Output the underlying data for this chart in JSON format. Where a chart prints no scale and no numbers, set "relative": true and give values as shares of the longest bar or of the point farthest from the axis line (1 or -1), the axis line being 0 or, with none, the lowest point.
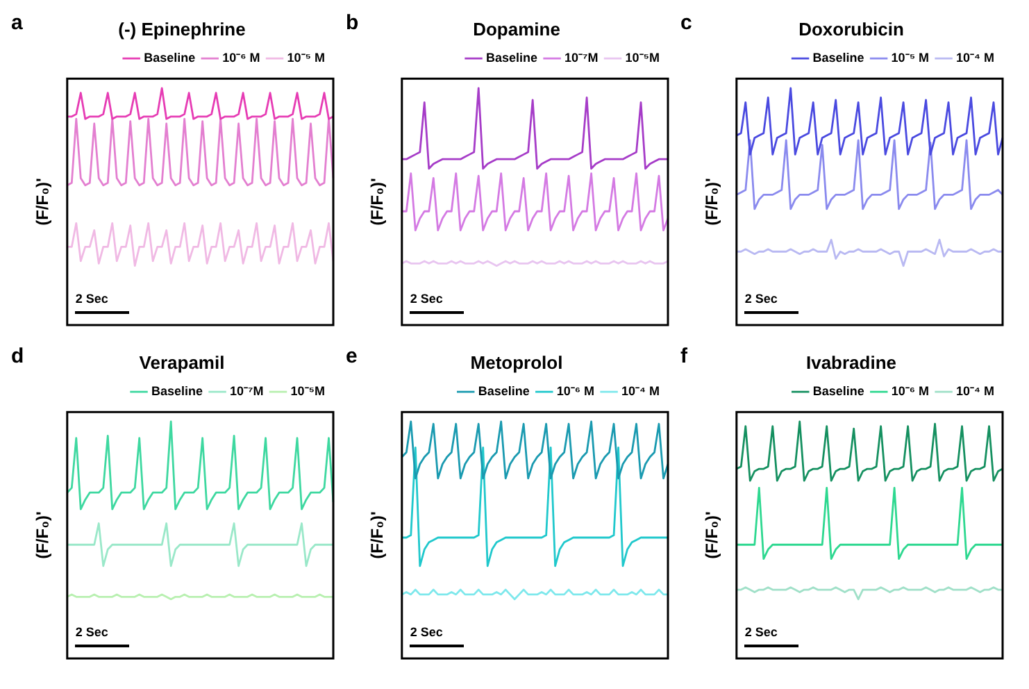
{
  "chart_data": [
    {
      "type": "line",
      "title": "(-) Epinephrine",
      "ylabel": "(F/F₀)'",
      "relative": true,
      "legend": "top right",
      "grid": false,
      "marker": "none",
      "line_style": "solid",
      "annotations": [
        "a",
        "2 Sec"
      ],
      "categories": [
        null,
        null,
        null,
        null,
        null,
        null,
        null,
        null,
        null,
        null,
        null,
        null,
        null,
        null,
        null,
        null,
        null,
        null,
        null,
        null,
        null,
        null,
        null,
        null,
        null,
        null,
        null,
        null,
        null,
        null,
        null,
        null,
        null,
        null,
        null,
        null,
        null,
        null,
        null,
        null,
        null,
        null,
        null,
        null,
        null,
        null,
        null,
        null,
        null,
        null,
        null,
        null,
        null,
        null,
        null,
        null,
        null,
        null,
        null,
        null
      ],
      "series": [
        {
          "name": "Baseline",
          "color": "#e63cb4",
          "values": [
            0.88,
            0.88,
            0.89,
            0.98,
            0.87,
            0.88,
            0.88,
            0.88,
            0.89,
            0.98,
            0.87,
            0.88,
            0.88,
            0.88,
            0.89,
            0.98,
            0.87,
            0.88,
            0.88,
            0.88,
            0.89,
            1,
            0.87,
            0.88,
            0.88,
            0.88,
            0.89,
            0.98,
            0.87,
            0.88,
            0.88,
            0.88,
            0.89,
            0.98,
            0.87,
            0.88,
            0.88,
            0.88,
            0.89,
            0.98,
            0.87,
            0.88,
            0.88,
            0.88,
            0.89,
            0.98,
            0.87,
            0.88,
            0.88,
            0.88,
            0.89,
            0.98,
            0.87,
            0.88,
            0.88,
            0.88,
            0.89,
            0.98,
            0.87,
            0.88
          ]
        },
        {
          "name": "10⁻⁶ M",
          "color": "#e37fd0",
          "values": [
            0.59,
            0.6,
            0.87,
            0.62,
            0.59,
            0.6,
            0.85,
            0.62,
            0.59,
            0.6,
            0.87,
            0.62,
            0.59,
            0.6,
            0.86,
            0.62,
            0.59,
            0.6,
            0.87,
            0.62,
            0.59,
            0.6,
            0.85,
            0.62,
            0.59,
            0.6,
            0.87,
            0.62,
            0.59,
            0.6,
            0.86,
            0.62,
            0.59,
            0.6,
            0.87,
            0.62,
            0.59,
            0.6,
            0.85,
            0.62,
            0.59,
            0.6,
            0.87,
            0.62,
            0.59,
            0.6,
            0.86,
            0.62,
            0.59,
            0.6,
            0.87,
            0.62,
            0.59,
            0.6,
            0.85,
            0.62,
            0.59,
            0.6,
            0.87,
            0.62
          ]
        },
        {
          "name": "10⁻⁵ M",
          "color": "#f0b9e4",
          "values": [
            0.33,
            0.33,
            0.43,
            0.27,
            0.33,
            0.33,
            0.4,
            0.26,
            0.33,
            0.33,
            0.43,
            0.27,
            0.33,
            0.33,
            0.42,
            0.25,
            0.33,
            0.33,
            0.43,
            0.27,
            0.33,
            0.33,
            0.4,
            0.26,
            0.33,
            0.33,
            0.43,
            0.27,
            0.33,
            0.33,
            0.42,
            0.26,
            0.33,
            0.33,
            0.43,
            0.27,
            0.33,
            0.33,
            0.4,
            0.26,
            0.33,
            0.33,
            0.43,
            0.27,
            0.33,
            0.33,
            0.42,
            0.26,
            0.33,
            0.33,
            0.43,
            0.27,
            0.33,
            0.33,
            0.4,
            0.26,
            0.33,
            0.33,
            0.43,
            0.27
          ]
        }
      ]
    },
    {
      "type": "line",
      "title": "Dopamine",
      "ylabel": "(F/F₀)'",
      "relative": true,
      "legend": "top right",
      "grid": false,
      "marker": "none",
      "line_style": "solid",
      "annotations": [
        "b",
        "2 Sec"
      ],
      "categories": [
        null,
        null,
        null,
        null,
        null,
        null,
        null,
        null,
        null,
        null,
        null,
        null,
        null,
        null,
        null,
        null,
        null,
        null,
        null,
        null,
        null,
        null,
        null,
        null,
        null,
        null,
        null,
        null,
        null,
        null,
        null,
        null,
        null,
        null,
        null,
        null,
        null,
        null,
        null,
        null,
        null,
        null,
        null,
        null,
        null,
        null,
        null,
        null,
        null,
        null,
        null,
        null,
        null,
        null,
        null,
        null,
        null,
        null,
        null,
        null
      ],
      "series": [
        {
          "name": "Baseline",
          "color": "#a63cc8",
          "values": [
            0.7,
            0.7,
            0.71,
            0.72,
            0.73,
            0.94,
            0.66,
            0.68,
            0.69,
            0.7,
            0.7,
            0.7,
            0.7,
            0.7,
            0.71,
            0.72,
            0.73,
            1,
            0.66,
            0.68,
            0.69,
            0.7,
            0.7,
            0.7,
            0.7,
            0.7,
            0.71,
            0.72,
            0.73,
            0.95,
            0.66,
            0.68,
            0.69,
            0.7,
            0.7,
            0.7,
            0.7,
            0.7,
            0.71,
            0.72,
            0.73,
            0.96,
            0.66,
            0.68,
            0.69,
            0.7,
            0.7,
            0.7,
            0.7,
            0.7,
            0.71,
            0.72,
            0.73,
            0.94,
            0.66,
            0.68,
            0.69,
            0.7,
            0.7,
            0.7
          ]
        },
        {
          "name": "10⁻⁷M",
          "color": "#d47ae3",
          "values": [
            0.48,
            0.48,
            0.64,
            0.4,
            0.45,
            0.48,
            0.48,
            0.62,
            0.4,
            0.45,
            0.48,
            0.48,
            0.64,
            0.4,
            0.45,
            0.48,
            0.48,
            0.63,
            0.4,
            0.45,
            0.48,
            0.48,
            0.64,
            0.4,
            0.45,
            0.48,
            0.48,
            0.62,
            0.4,
            0.45,
            0.48,
            0.48,
            0.64,
            0.4,
            0.45,
            0.48,
            0.48,
            0.63,
            0.4,
            0.45,
            0.48,
            0.48,
            0.64,
            0.4,
            0.45,
            0.48,
            0.48,
            0.62,
            0.4,
            0.45,
            0.48,
            0.48,
            0.64,
            0.4,
            0.45,
            0.48,
            0.48,
            0.63,
            0.4,
            0.45
          ]
        },
        {
          "name": "10⁻⁵M",
          "color": "#e8c5f0",
          "values": [
            0.26,
            0.27,
            0.26,
            0.26,
            0.26,
            0.27,
            0.26,
            0.27,
            0.26,
            0.26,
            0.26,
            0.27,
            0.26,
            0.27,
            0.26,
            0.26,
            0.26,
            0.27,
            0.26,
            0.27,
            0.26,
            0.25,
            0.26,
            0.27,
            0.26,
            0.27,
            0.26,
            0.26,
            0.26,
            0.27,
            0.26,
            0.27,
            0.26,
            0.26,
            0.26,
            0.27,
            0.26,
            0.27,
            0.26,
            0.26,
            0.26,
            0.27,
            0.26,
            0.27,
            0.26,
            0.26,
            0.26,
            0.27,
            0.26,
            0.27,
            0.26,
            0.26,
            0.26,
            0.27,
            0.26,
            0.27,
            0.26,
            0.26,
            0.26,
            0.27
          ]
        }
      ]
    },
    {
      "type": "line",
      "title": "Doxorubicin",
      "ylabel": "(F/F₀)'",
      "relative": true,
      "legend": "top right",
      "grid": false,
      "marker": "none",
      "line_style": "solid",
      "annotations": [
        "c",
        "2 Sec"
      ],
      "categories": [
        null,
        null,
        null,
        null,
        null,
        null,
        null,
        null,
        null,
        null,
        null,
        null,
        null,
        null,
        null,
        null,
        null,
        null,
        null,
        null,
        null,
        null,
        null,
        null,
        null,
        null,
        null,
        null,
        null,
        null,
        null,
        null,
        null,
        null,
        null,
        null,
        null,
        null,
        null,
        null,
        null,
        null,
        null,
        null,
        null,
        null,
        null,
        null,
        null,
        null,
        null,
        null,
        null,
        null,
        null,
        null,
        null,
        null,
        null,
        null
      ],
      "series": [
        {
          "name": "Baseline",
          "color": "#4a4ae0",
          "values": [
            0.8,
            0.81,
            0.94,
            0.72,
            0.79,
            0.8,
            0.81,
            0.96,
            0.72,
            0.79,
            0.8,
            0.81,
            1,
            0.72,
            0.79,
            0.8,
            0.81,
            0.94,
            0.72,
            0.79,
            0.8,
            0.81,
            0.95,
            0.72,
            0.79,
            0.8,
            0.81,
            0.94,
            0.72,
            0.79,
            0.8,
            0.81,
            0.96,
            0.72,
            0.79,
            0.8,
            0.81,
            0.94,
            0.72,
            0.79,
            0.8,
            0.81,
            0.95,
            0.72,
            0.79,
            0.8,
            0.81,
            0.94,
            0.72,
            0.79,
            0.8,
            0.81,
            0.96,
            0.72,
            0.79,
            0.8,
            0.81,
            0.94,
            0.72,
            0.79
          ]
        },
        {
          "name": "10⁻⁵ M",
          "color": "#8a8aee",
          "values": [
            0.55,
            0.56,
            0.57,
            0.78,
            0.49,
            0.53,
            0.55,
            0.55,
            0.55,
            0.56,
            0.57,
            0.78,
            0.49,
            0.53,
            0.55,
            0.55,
            0.55,
            0.56,
            0.57,
            0.76,
            0.49,
            0.53,
            0.55,
            0.55,
            0.55,
            0.56,
            0.57,
            0.78,
            0.49,
            0.53,
            0.55,
            0.55,
            0.55,
            0.56,
            0.57,
            0.78,
            0.49,
            0.53,
            0.55,
            0.55,
            0.55,
            0.56,
            0.57,
            0.77,
            0.49,
            0.53,
            0.55,
            0.55,
            0.55,
            0.56,
            0.57,
            0.78,
            0.49,
            0.53,
            0.55,
            0.55,
            0.55,
            0.56,
            0.57,
            0.55
          ]
        },
        {
          "name": "10⁻⁴ M",
          "color": "#b9b9f2",
          "values": [
            0.31,
            0.31,
            0.32,
            0.31,
            0.3,
            0.31,
            0.31,
            0.32,
            0.31,
            0.31,
            0.31,
            0.31,
            0.32,
            0.31,
            0.3,
            0.31,
            0.31,
            0.32,
            0.31,
            0.31,
            0.31,
            0.36,
            0.28,
            0.31,
            0.3,
            0.31,
            0.31,
            0.32,
            0.31,
            0.31,
            0.31,
            0.31,
            0.32,
            0.31,
            0.3,
            0.31,
            0.31,
            0.25,
            0.31,
            0.31,
            0.31,
            0.31,
            0.32,
            0.31,
            0.3,
            0.36,
            0.29,
            0.32,
            0.31,
            0.31,
            0.31,
            0.31,
            0.32,
            0.31,
            0.3,
            0.31,
            0.31,
            0.32,
            0.31,
            0.31
          ]
        }
      ]
    },
    {
      "type": "line",
      "title": "Verapamil",
      "ylabel": "(F/F₀)'",
      "relative": true,
      "legend": "top right",
      "grid": false,
      "marker": "none",
      "line_style": "solid",
      "annotations": [
        "d",
        "2 Sec"
      ],
      "categories": [
        null,
        null,
        null,
        null,
        null,
        null,
        null,
        null,
        null,
        null,
        null,
        null,
        null,
        null,
        null,
        null,
        null,
        null,
        null,
        null,
        null,
        null,
        null,
        null,
        null,
        null,
        null,
        null,
        null,
        null,
        null,
        null,
        null,
        null,
        null,
        null,
        null,
        null,
        null,
        null,
        null,
        null,
        null,
        null,
        null,
        null,
        null,
        null,
        null,
        null,
        null,
        null,
        null,
        null,
        null,
        null,
        null,
        null,
        null,
        null
      ],
      "series": [
        {
          "name": "Baseline",
          "color": "#3ed8a0",
          "values": [
            0.7,
            0.72,
            0.93,
            0.63,
            0.67,
            0.7,
            0.7,
            0.7,
            0.72,
            0.94,
            0.63,
            0.67,
            0.7,
            0.7,
            0.7,
            0.72,
            0.93,
            0.63,
            0.67,
            0.7,
            0.7,
            0.7,
            0.72,
            1,
            0.63,
            0.67,
            0.7,
            0.7,
            0.7,
            0.72,
            0.93,
            0.63,
            0.67,
            0.7,
            0.7,
            0.7,
            0.72,
            0.94,
            0.63,
            0.67,
            0.7,
            0.7,
            0.7,
            0.72,
            0.93,
            0.63,
            0.67,
            0.7,
            0.7,
            0.7,
            0.72,
            0.93,
            0.63,
            0.67,
            0.7,
            0.7,
            0.7,
            0.72,
            0.93,
            0.66
          ]
        },
        {
          "name": "10⁻⁷M",
          "color": "#9ae8c9",
          "values": [
            0.48,
            0.48,
            0.48,
            0.48,
            0.48,
            0.48,
            0.48,
            0.57,
            0.39,
            0.46,
            0.48,
            0.48,
            0.48,
            0.48,
            0.48,
            0.48,
            0.48,
            0.48,
            0.48,
            0.48,
            0.48,
            0.48,
            0.57,
            0.39,
            0.46,
            0.48,
            0.48,
            0.48,
            0.48,
            0.48,
            0.48,
            0.48,
            0.48,
            0.48,
            0.48,
            0.48,
            0.48,
            0.57,
            0.39,
            0.46,
            0.48,
            0.48,
            0.48,
            0.48,
            0.48,
            0.48,
            0.48,
            0.48,
            0.48,
            0.48,
            0.48,
            0.48,
            0.57,
            0.39,
            0.46,
            0.48,
            0.48,
            0.48,
            0.48,
            0.48
          ]
        },
        {
          "name": "10⁻⁵M",
          "color": "#b8f0b0",
          "values": [
            0.26,
            0.27,
            0.26,
            0.26,
            0.26,
            0.26,
            0.27,
            0.26,
            0.26,
            0.26,
            0.26,
            0.27,
            0.26,
            0.26,
            0.26,
            0.26,
            0.27,
            0.26,
            0.26,
            0.26,
            0.26,
            0.27,
            0.26,
            0.25,
            0.26,
            0.26,
            0.27,
            0.26,
            0.26,
            0.26,
            0.26,
            0.27,
            0.26,
            0.26,
            0.26,
            0.26,
            0.27,
            0.26,
            0.26,
            0.26,
            0.26,
            0.27,
            0.26,
            0.26,
            0.26,
            0.26,
            0.27,
            0.26,
            0.26,
            0.26,
            0.26,
            0.27,
            0.26,
            0.26,
            0.26,
            0.26,
            0.27,
            0.26,
            0.26,
            0.26
          ]
        }
      ]
    },
    {
      "type": "line",
      "title": "Metoprolol",
      "ylabel": "(F/F₀)'",
      "relative": true,
      "legend": "top right",
      "grid": false,
      "marker": "none",
      "line_style": "solid",
      "annotations": [
        "e",
        "2 Sec"
      ],
      "categories": [
        null,
        null,
        null,
        null,
        null,
        null,
        null,
        null,
        null,
        null,
        null,
        null,
        null,
        null,
        null,
        null,
        null,
        null,
        null,
        null,
        null,
        null,
        null,
        null,
        null,
        null,
        null,
        null,
        null,
        null,
        null,
        null,
        null,
        null,
        null,
        null,
        null,
        null,
        null,
        null,
        null,
        null,
        null,
        null,
        null,
        null,
        null,
        null,
        null,
        null,
        null,
        null,
        null,
        null,
        null,
        null,
        null,
        null,
        null,
        null
      ],
      "series": [
        {
          "name": "Baseline",
          "color": "#1a9ab0",
          "values": [
            0.85,
            0.87,
            1,
            0.76,
            0.82,
            0.85,
            0.87,
            0.99,
            0.76,
            0.82,
            0.85,
            0.87,
            0.99,
            0.76,
            0.82,
            0.85,
            0.87,
            0.99,
            0.76,
            0.82,
            0.85,
            0.87,
            1,
            0.76,
            0.82,
            0.85,
            0.87,
            0.99,
            0.76,
            0.82,
            0.85,
            0.87,
            0.99,
            0.76,
            0.82,
            0.85,
            0.87,
            0.99,
            0.76,
            0.82,
            0.85,
            0.87,
            1,
            0.76,
            0.82,
            0.85,
            0.87,
            0.99,
            0.76,
            0.82,
            0.85,
            0.87,
            0.99,
            0.76,
            0.82,
            0.85,
            0.87,
            0.99,
            0.76,
            0.82
          ]
        },
        {
          "name": "10⁻⁶ M",
          "color": "#20c8cc",
          "values": [
            0.51,
            0.51,
            0.52,
            0.89,
            0.39,
            0.46,
            0.49,
            0.5,
            0.51,
            0.51,
            0.51,
            0.51,
            0.51,
            0.51,
            0.51,
            0.51,
            0.51,
            0.52,
            0.89,
            0.39,
            0.46,
            0.49,
            0.5,
            0.51,
            0.51,
            0.51,
            0.51,
            0.51,
            0.51,
            0.51,
            0.51,
            0.51,
            0.52,
            0.89,
            0.39,
            0.46,
            0.49,
            0.5,
            0.51,
            0.51,
            0.51,
            0.51,
            0.51,
            0.51,
            0.51,
            0.51,
            0.51,
            0.52,
            0.89,
            0.39,
            0.46,
            0.49,
            0.5,
            0.51,
            0.51,
            0.51,
            0.51,
            0.51,
            0.51,
            0.51
          ]
        },
        {
          "name": "10⁻⁴ M",
          "color": "#7ee8ec",
          "values": [
            0.27,
            0.28,
            0.27,
            0.29,
            0.27,
            0.27,
            0.27,
            0.29,
            0.27,
            0.27,
            0.27,
            0.28,
            0.27,
            0.29,
            0.27,
            0.27,
            0.27,
            0.29,
            0.27,
            0.27,
            0.27,
            0.28,
            0.27,
            0.29,
            0.27,
            0.25,
            0.27,
            0.29,
            0.27,
            0.27,
            0.27,
            0.28,
            0.27,
            0.29,
            0.27,
            0.27,
            0.27,
            0.29,
            0.27,
            0.27,
            0.27,
            0.28,
            0.27,
            0.29,
            0.27,
            0.27,
            0.27,
            0.29,
            0.27,
            0.27,
            0.27,
            0.28,
            0.27,
            0.29,
            0.27,
            0.27,
            0.27,
            0.29,
            0.27,
            0.27
          ]
        }
      ]
    },
    {
      "type": "line",
      "title": "Ivabradine",
      "ylabel": "(F/F₀)'",
      "relative": true,
      "legend": "top right",
      "grid": false,
      "marker": "none",
      "line_style": "solid",
      "annotations": [
        "f",
        "2 Sec"
      ],
      "categories": [
        null,
        null,
        null,
        null,
        null,
        null,
        null,
        null,
        null,
        null,
        null,
        null,
        null,
        null,
        null,
        null,
        null,
        null,
        null,
        null,
        null,
        null,
        null,
        null,
        null,
        null,
        null,
        null,
        null,
        null,
        null,
        null,
        null,
        null,
        null,
        null,
        null,
        null,
        null,
        null,
        null,
        null,
        null,
        null,
        null,
        null,
        null,
        null,
        null,
        null,
        null,
        null,
        null,
        null,
        null,
        null,
        null,
        null,
        null,
        null
      ],
      "series": [
        {
          "name": "Baseline",
          "color": "#159060",
          "values": [
            0.8,
            0.81,
            0.98,
            0.75,
            0.79,
            0.8,
            0.8,
            0.81,
            0.98,
            0.75,
            0.79,
            0.8,
            0.8,
            0.81,
            1,
            0.75,
            0.79,
            0.8,
            0.8,
            0.81,
            0.98,
            0.75,
            0.79,
            0.8,
            0.8,
            0.81,
            0.97,
            0.75,
            0.79,
            0.8,
            0.8,
            0.81,
            0.98,
            0.75,
            0.79,
            0.8,
            0.8,
            0.81,
            0.98,
            0.75,
            0.79,
            0.8,
            0.8,
            0.81,
            0.99,
            0.75,
            0.79,
            0.8,
            0.8,
            0.81,
            0.98,
            0.75,
            0.79,
            0.8,
            0.8,
            0.81,
            0.98,
            0.75,
            0.79,
            0.8
          ]
        },
        {
          "name": "10⁻⁶ M",
          "color": "#2ed890",
          "values": [
            0.48,
            0.48,
            0.48,
            0.48,
            0.48,
            0.72,
            0.42,
            0.46,
            0.48,
            0.48,
            0.48,
            0.48,
            0.48,
            0.48,
            0.48,
            0.48,
            0.48,
            0.48,
            0.48,
            0.48,
            0.72,
            0.42,
            0.46,
            0.48,
            0.48,
            0.48,
            0.48,
            0.48,
            0.48,
            0.48,
            0.48,
            0.48,
            0.48,
            0.48,
            0.48,
            0.72,
            0.42,
            0.46,
            0.48,
            0.48,
            0.48,
            0.48,
            0.48,
            0.48,
            0.48,
            0.48,
            0.48,
            0.48,
            0.48,
            0.48,
            0.72,
            0.42,
            0.46,
            0.48,
            0.48,
            0.48,
            0.48,
            0.48,
            0.48,
            0.48
          ]
        },
        {
          "name": "10⁻⁴ M",
          "color": "#a0e0c8",
          "values": [
            0.29,
            0.29,
            0.3,
            0.29,
            0.28,
            0.29,
            0.29,
            0.3,
            0.29,
            0.29,
            0.29,
            0.29,
            0.3,
            0.29,
            0.28,
            0.29,
            0.29,
            0.3,
            0.29,
            0.29,
            0.29,
            0.29,
            0.3,
            0.29,
            0.28,
            0.29,
            0.29,
            0.25,
            0.29,
            0.29,
            0.29,
            0.29,
            0.3,
            0.29,
            0.28,
            0.29,
            0.29,
            0.3,
            0.29,
            0.29,
            0.29,
            0.29,
            0.3,
            0.29,
            0.28,
            0.29,
            0.29,
            0.3,
            0.29,
            0.29,
            0.29,
            0.29,
            0.3,
            0.29,
            0.28,
            0.29,
            0.29,
            0.3,
            0.29,
            0.29
          ]
        }
      ]
    }
  ]
}
